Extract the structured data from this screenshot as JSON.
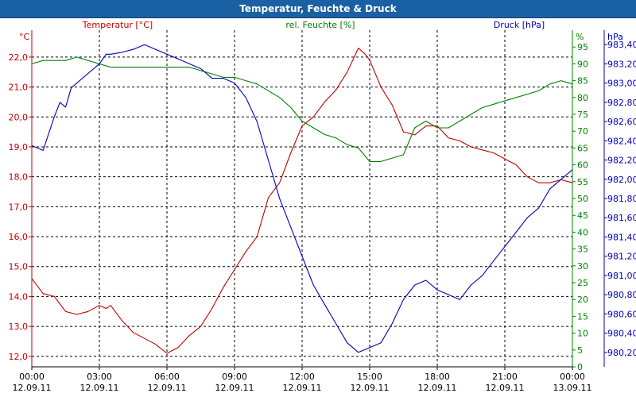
{
  "window": {
    "title": "Temperatur, Feuchte & Druck"
  },
  "chart_data": {
    "type": "line",
    "title": "Temperatur, Feuchte & Druck",
    "colors": {
      "temperature": "#c00000",
      "humidity": "#008000",
      "pressure": "#0000b4",
      "grid": "#000000"
    },
    "axes": {
      "left": {
        "unit": "°C",
        "legend": "Temperatur [°C]",
        "range": [
          11.65,
          22.9
        ],
        "ticks": [
          "12,0",
          "13,0",
          "14,0",
          "15,0",
          "16,0",
          "17,0",
          "18,0",
          "19,0",
          "20,0",
          "21,0",
          "22,0"
        ],
        "tick_values": [
          12,
          13,
          14,
          15,
          16,
          17,
          18,
          19,
          20,
          21,
          22
        ]
      },
      "right1": {
        "unit": "%",
        "legend": "rel. Feuchte [%]",
        "range": [
          0,
          100
        ],
        "ticks": [
          "0",
          "5",
          "10",
          "15",
          "20",
          "25",
          "30",
          "35",
          "40",
          "45",
          "50",
          "55",
          "60",
          "65",
          "70",
          "75",
          "80",
          "85",
          "90",
          "95"
        ],
        "tick_values": [
          0,
          5,
          10,
          15,
          20,
          25,
          30,
          35,
          40,
          45,
          50,
          55,
          60,
          65,
          70,
          75,
          80,
          85,
          90,
          95
        ]
      },
      "right2": {
        "unit": "hPa",
        "legend": "Druck [hPa]",
        "range": [
          980.05,
          983.55
        ],
        "ticks": [
          "980,20",
          "980,40",
          "980,60",
          "980,80",
          "981,00",
          "981,20",
          "981,40",
          "981,60",
          "981,80",
          "982,00",
          "982,20",
          "982,40",
          "982,60",
          "982,80",
          "983,00",
          "983,20",
          "983,40"
        ],
        "tick_values": [
          980.2,
          980.4,
          980.6,
          980.8,
          981.0,
          981.2,
          981.4,
          981.6,
          981.8,
          982.0,
          982.2,
          982.4,
          982.6,
          982.8,
          983.0,
          983.2,
          983.4
        ]
      }
    },
    "x_range_hours": [
      0,
      24
    ],
    "x_ticks": [
      {
        "time": "00:00",
        "date": "12.09.11"
      },
      {
        "time": "03:00",
        "date": "12.09.11"
      },
      {
        "time": "06:00",
        "date": "12.09.11"
      },
      {
        "time": "09:00",
        "date": "12.09.11"
      },
      {
        "time": "12:00",
        "date": "12.09.11"
      },
      {
        "time": "15:00",
        "date": "12.09.11"
      },
      {
        "time": "18:00",
        "date": "12.09.11"
      },
      {
        "time": "21:00",
        "date": "12.09.11"
      },
      {
        "time": "00:00",
        "date": "13.09.11"
      }
    ],
    "series": [
      {
        "name": "Temperatur",
        "axis": "left",
        "color": "#c00000",
        "x": [
          0,
          0.5,
          1,
          1.5,
          2,
          2.5,
          3,
          3.3,
          3.5,
          4,
          4.5,
          5,
          5.5,
          6,
          6.5,
          7,
          7.5,
          8,
          8.5,
          9,
          9.5,
          10,
          10.5,
          11,
          11.5,
          12,
          12.5,
          13,
          13.5,
          14,
          14.5,
          14.8,
          15,
          15.5,
          16,
          16.5,
          17,
          17.5,
          18,
          18.5,
          19,
          19.5,
          20,
          20.5,
          21,
          21.5,
          22,
          22.5,
          23,
          23.5,
          24
        ],
        "y": [
          14.6,
          14.1,
          14.0,
          13.5,
          13.4,
          13.5,
          13.7,
          13.6,
          13.7,
          13.2,
          12.8,
          12.6,
          12.4,
          12.1,
          12.3,
          12.7,
          13.0,
          13.6,
          14.3,
          14.9,
          15.5,
          16.0,
          17.3,
          17.8,
          18.8,
          19.7,
          20.0,
          20.5,
          20.9,
          21.5,
          22.3,
          22.1,
          21.9,
          21.0,
          20.4,
          19.5,
          19.4,
          19.7,
          19.7,
          19.3,
          19.2,
          19.0,
          18.9,
          18.8,
          18.6,
          18.4,
          18.0,
          17.8,
          17.8,
          17.9,
          17.8
        ]
      },
      {
        "name": "rel. Feuchte",
        "axis": "right1",
        "color": "#008000",
        "x": [
          0,
          0.5,
          1,
          1.5,
          2,
          2.5,
          3,
          3.5,
          4,
          4.5,
          5,
          5.5,
          6,
          6.5,
          7,
          7.5,
          8,
          8.5,
          9,
          9.5,
          10,
          10.5,
          11,
          11.5,
          12,
          12.5,
          13,
          13.5,
          14,
          14.5,
          15,
          15.5,
          16,
          16.5,
          17,
          17.5,
          18,
          18.5,
          19,
          19.5,
          20,
          20.5,
          21,
          21.5,
          22,
          22.5,
          23,
          23.5,
          24
        ],
        "y": [
          90,
          91,
          91,
          91,
          92,
          91,
          90,
          89,
          89,
          89,
          89,
          89,
          89,
          89,
          89,
          88,
          87,
          86,
          86,
          85,
          84,
          82,
          80,
          77,
          73,
          71,
          69,
          68,
          66,
          65,
          61,
          61,
          62,
          63,
          71,
          73,
          71,
          71,
          73,
          75,
          77,
          78,
          79,
          80,
          81,
          82,
          84,
          85,
          84
        ]
      },
      {
        "name": "Druck",
        "axis": "right2",
        "color": "#0000b4",
        "x": [
          0,
          0.5,
          1,
          1.25,
          1.5,
          1.75,
          2,
          2.5,
          3,
          3.3,
          3.5,
          4,
          4.5,
          5,
          5.5,
          6,
          6.5,
          7,
          7.5,
          8,
          8.5,
          9,
          9.5,
          10,
          10.5,
          11,
          11.5,
          12,
          12.5,
          13,
          13.5,
          14,
          14.5,
          15,
          15.5,
          16,
          16.5,
          17,
          17.5,
          18,
          18.5,
          19,
          19.5,
          20,
          20.5,
          21,
          21.5,
          22,
          22.5,
          23,
          23.5,
          24
        ],
        "y": [
          982.35,
          982.3,
          982.65,
          982.8,
          982.75,
          982.95,
          983.0,
          983.1,
          983.2,
          983.3,
          983.3,
          983.32,
          983.35,
          983.4,
          983.35,
          983.3,
          983.25,
          983.2,
          983.15,
          983.05,
          983.05,
          983.0,
          982.85,
          982.6,
          982.2,
          981.8,
          981.5,
          981.2,
          980.9,
          980.7,
          980.5,
          980.3,
          980.2,
          980.25,
          980.3,
          980.5,
          980.75,
          980.9,
          980.95,
          980.85,
          980.8,
          980.75,
          980.9,
          981.0,
          981.15,
          981.3,
          981.45,
          981.6,
          981.7,
          981.9,
          982.0,
          982.1
        ]
      }
    ]
  }
}
